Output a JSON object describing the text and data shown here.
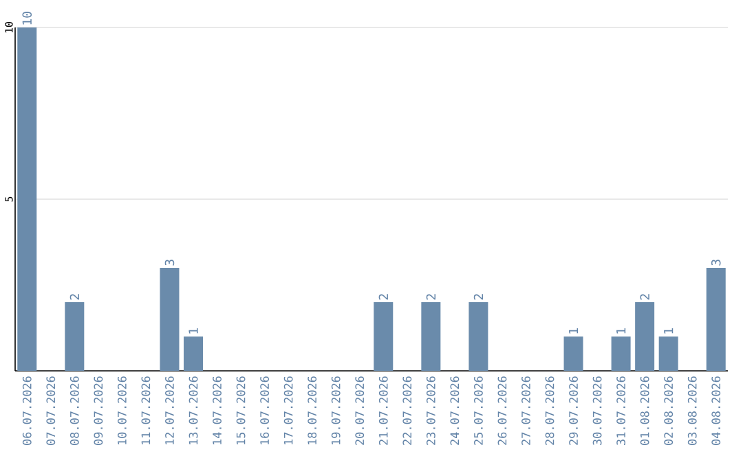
{
  "chart_data": {
    "type": "bar",
    "categories": [
      "06.07.2026",
      "07.07.2026",
      "08.07.2026",
      "09.07.2026",
      "10.07.2026",
      "11.07.2026",
      "12.07.2026",
      "13.07.2026",
      "14.07.2026",
      "15.07.2026",
      "16.07.2026",
      "17.07.2026",
      "18.07.2026",
      "19.07.2026",
      "20.07.2026",
      "21.07.2026",
      "22.07.2026",
      "23.07.2026",
      "24.07.2026",
      "25.07.2026",
      "26.07.2026",
      "27.07.2026",
      "28.07.2026",
      "29.07.2026",
      "30.07.2026",
      "31.07.2026",
      "01.08.2026",
      "02.08.2026",
      "03.08.2026",
      "04.08.2026"
    ],
    "values": [
      10,
      0,
      2,
      0,
      0,
      0,
      3,
      1,
      0,
      0,
      0,
      0,
      0,
      0,
      0,
      2,
      0,
      2,
      0,
      2,
      0,
      0,
      0,
      1,
      0,
      1,
      2,
      1,
      0,
      3
    ],
    "value_labels": [
      "10",
      null,
      "2",
      null,
      null,
      null,
      "3",
      "1",
      null,
      null,
      null,
      null,
      null,
      null,
      null,
      "2",
      null,
      "2",
      null,
      "2",
      null,
      null,
      null,
      "1",
      null,
      "1",
      "2",
      "1",
      null,
      "3"
    ],
    "color": "#6a8bab",
    "ylim": [
      0,
      10
    ],
    "yticks": [
      5,
      10
    ],
    "grid": "y"
  }
}
